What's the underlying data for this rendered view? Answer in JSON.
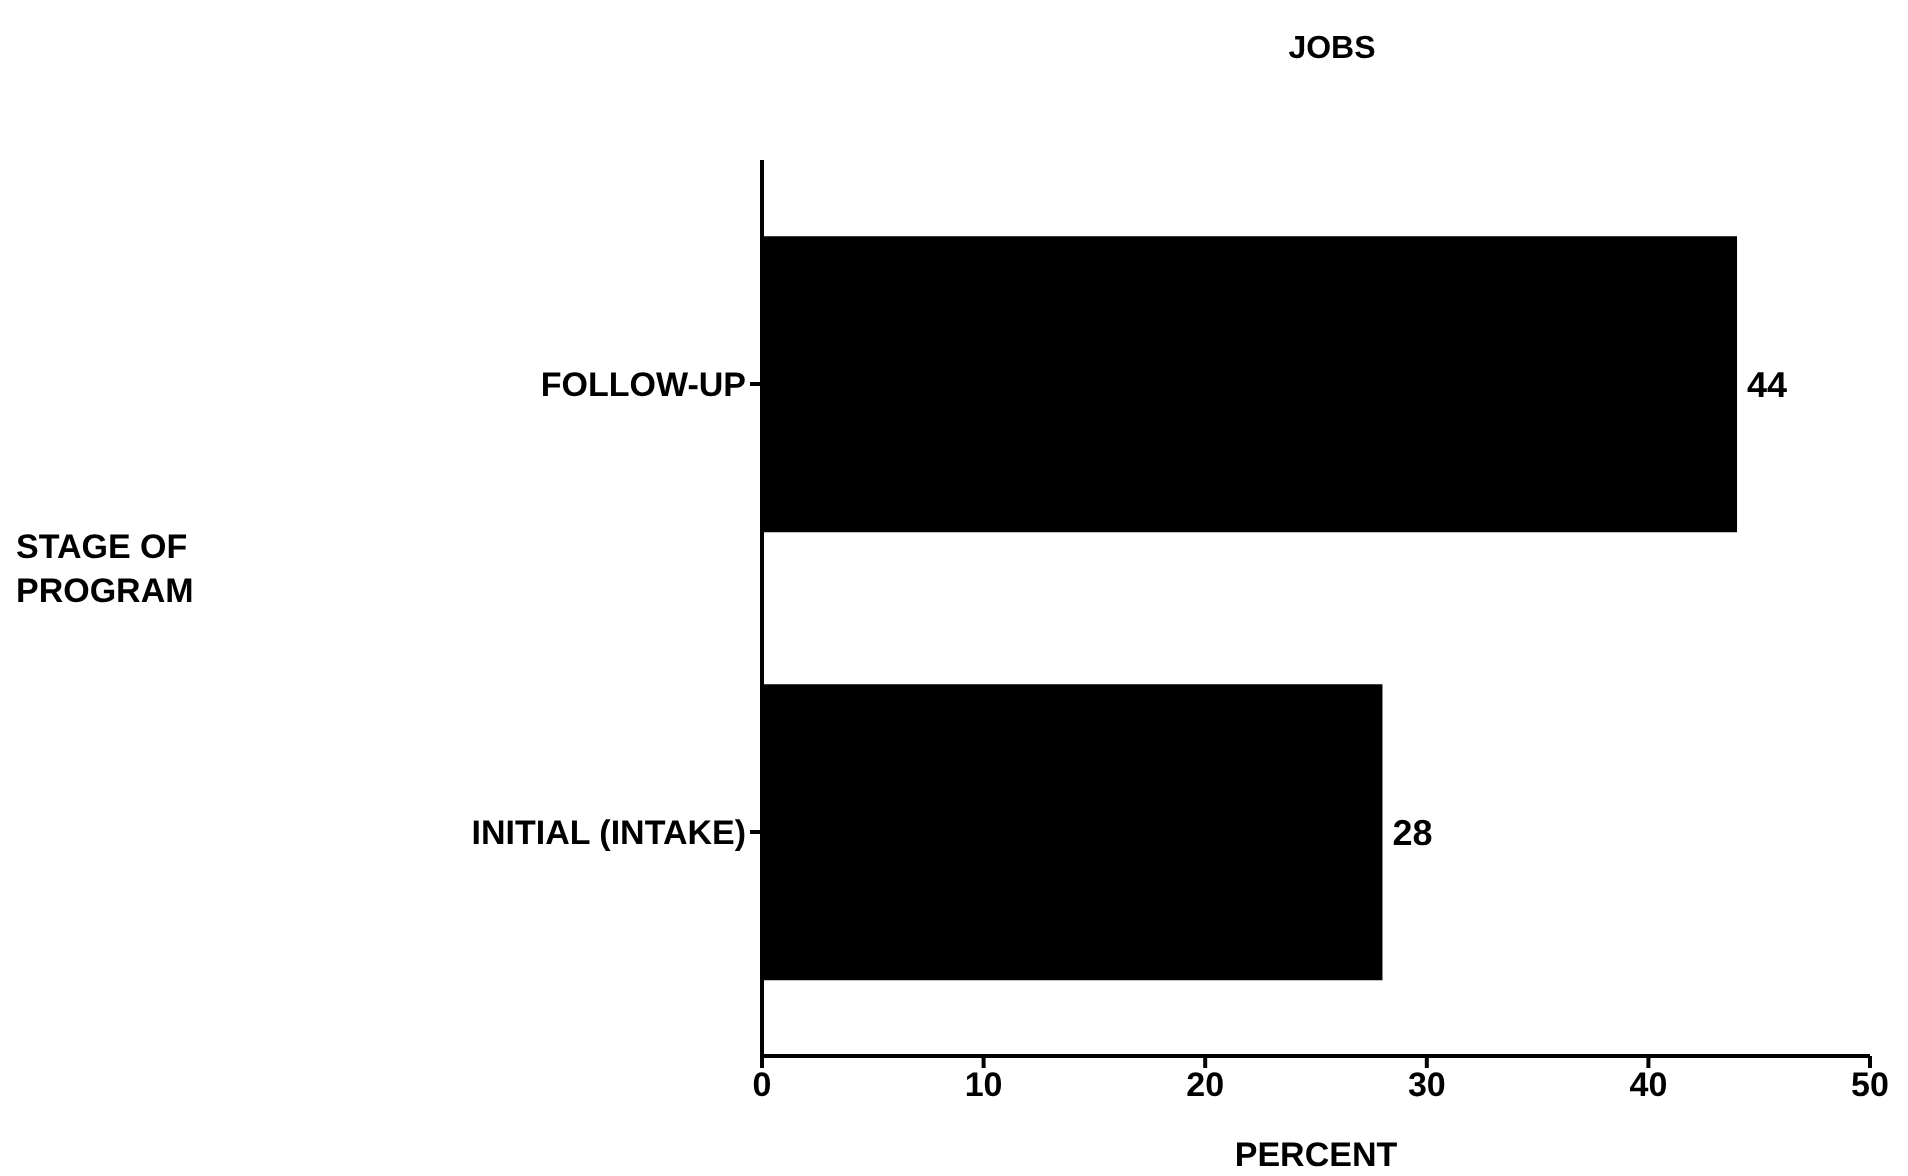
{
  "chart_data": {
    "type": "bar",
    "orientation": "horizontal",
    "title": "JOBS",
    "xlabel": "PERCENT",
    "annotations": [
      "STAGE OF PROGRAM"
    ],
    "categories": [
      "FOLLOW-UP",
      "INITIAL (INTAKE)"
    ],
    "values": [
      44,
      28
    ],
    "color": "#000000",
    "xlim": [
      0,
      50
    ],
    "xticks": [
      0,
      10,
      20,
      30,
      40,
      50
    ],
    "data_labels": true,
    "grid": false
  }
}
